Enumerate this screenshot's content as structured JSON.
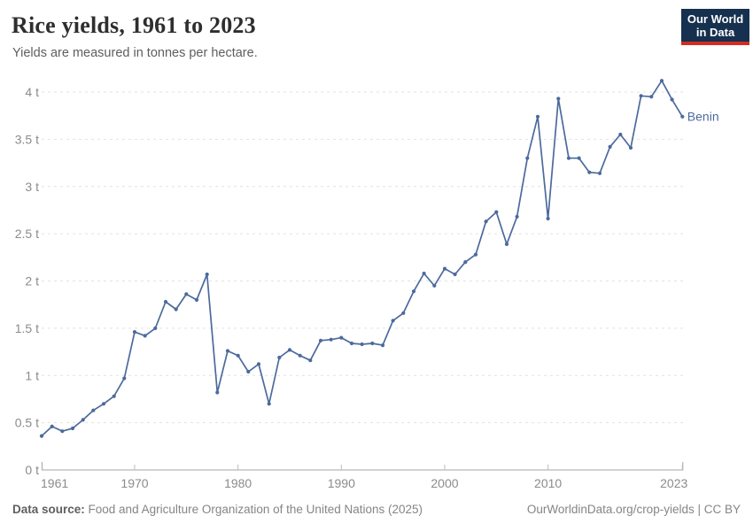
{
  "header": {
    "title": "Rice yields, 1961 to 2023",
    "subtitle": "Yields are measured in tonnes per hectare."
  },
  "logo": {
    "line1": "Our World",
    "line2": "in Data"
  },
  "footer": {
    "source_label": "Data source:",
    "source_text": " Food and Agriculture Organization of the United Nations (2025)",
    "link_text": "OurWorldinData.org/crop-yields",
    "separator": " | ",
    "license": "CC BY"
  },
  "colors": {
    "line": "#4C6A9C",
    "series_label": "#4C6A9C",
    "logo_bg": "#16304f",
    "logo_accent": "#d42b21",
    "grid": "#e2e2e2",
    "axis": "#a6a6a6",
    "tick_text": "#8b8b8b"
  },
  "chart_data": {
    "type": "line",
    "title": "Rice yields, 1961 to 2023",
    "subtitle": "Yields are measured in tonnes per hectare.",
    "unit": "tonnes per hectare",
    "grid": "horizontal-dashed",
    "legend": "end-of-line-label",
    "xlim": [
      1961,
      2023
    ],
    "ylim": [
      0,
      4
    ],
    "x_ticks": [
      1961,
      1970,
      1980,
      1990,
      2000,
      2010,
      2023
    ],
    "y_ticks": [
      {
        "value": 0,
        "label": "0 t"
      },
      {
        "value": 0.5,
        "label": "0.5 t"
      },
      {
        "value": 1,
        "label": "1 t"
      },
      {
        "value": 1.5,
        "label": "1.5 t"
      },
      {
        "value": 2,
        "label": "2 t"
      },
      {
        "value": 2.5,
        "label": "2.5 t"
      },
      {
        "value": 3,
        "label": "3 t"
      },
      {
        "value": 3.5,
        "label": "3.5 t"
      },
      {
        "value": 4,
        "label": "4 t"
      }
    ],
    "x": [
      1961,
      1962,
      1963,
      1964,
      1965,
      1966,
      1967,
      1968,
      1969,
      1970,
      1971,
      1972,
      1973,
      1974,
      1975,
      1976,
      1977,
      1978,
      1979,
      1980,
      1981,
      1982,
      1983,
      1984,
      1985,
      1986,
      1987,
      1988,
      1989,
      1990,
      1991,
      1992,
      1993,
      1994,
      1995,
      1996,
      1997,
      1998,
      1999,
      2000,
      2001,
      2002,
      2003,
      2004,
      2005,
      2006,
      2007,
      2008,
      2009,
      2010,
      2011,
      2012,
      2013,
      2014,
      2015,
      2016,
      2017,
      2018,
      2019,
      2020,
      2021,
      2022,
      2023
    ],
    "series": [
      {
        "name": "Benin",
        "color": "#4C6A9C",
        "values": [
          0.36,
          0.46,
          0.41,
          0.44,
          0.53,
          0.63,
          0.7,
          0.78,
          0.97,
          1.46,
          1.42,
          1.5,
          1.78,
          1.7,
          1.86,
          1.8,
          2.07,
          0.82,
          1.26,
          1.21,
          1.04,
          1.12,
          0.7,
          1.19,
          1.27,
          1.21,
          1.16,
          1.37,
          1.38,
          1.4,
          1.34,
          1.33,
          1.34,
          1.32,
          1.58,
          1.66,
          1.89,
          2.08,
          1.95,
          2.13,
          2.07,
          2.2,
          2.28,
          2.63,
          2.73,
          2.39,
          2.68,
          3.3,
          3.74,
          2.66,
          3.93,
          3.3,
          3.3,
          3.15,
          3.14,
          3.42,
          3.55,
          3.41,
          3.96,
          3.95,
          4.12,
          3.92,
          3.74
        ]
      }
    ]
  }
}
